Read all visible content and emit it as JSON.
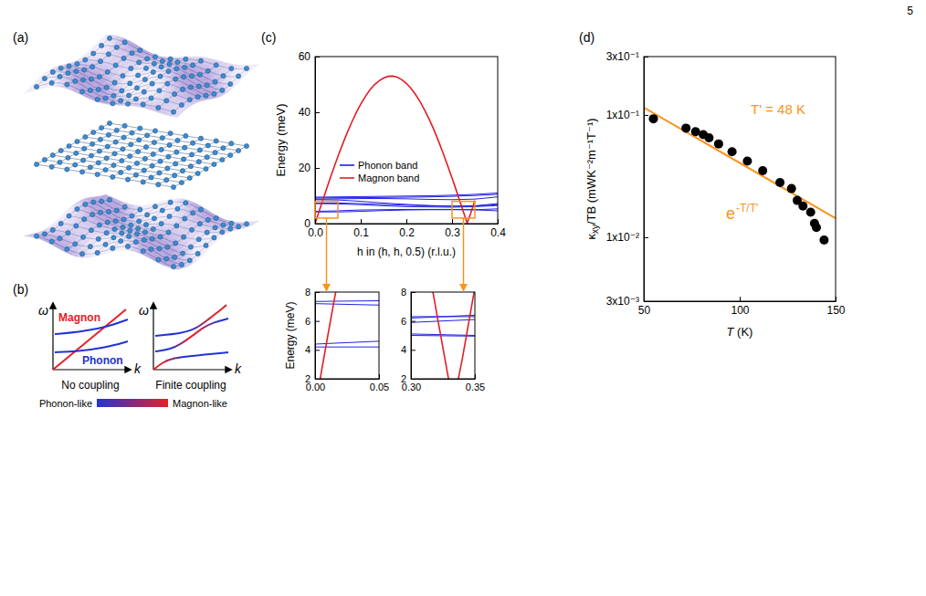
{
  "page_number": "5",
  "chart_data": [
    {
      "type": "diagram",
      "panel": "(a)"
    },
    {
      "type": "schematic",
      "panel": "(b)",
      "panels": [
        {
          "title": "No coupling",
          "x_label": "k",
          "y_label": "ω",
          "series": [
            {
              "name": "Magnon",
              "color": "#e3202a"
            },
            {
              "name": "Phonon",
              "color": "#2233d4"
            }
          ]
        },
        {
          "title": "Finite coupling",
          "x_label": "k",
          "y_label": "ω"
        }
      ],
      "colorbar": {
        "labels": [
          "Phonon-like",
          "Magnon-like"
        ],
        "colors": [
          "#2233d4",
          "#e3202a"
        ]
      }
    },
    {
      "type": "line",
      "panel": "(c)",
      "x_label": "h in (h, h, 0.5) (r.l.u.)",
      "y_label": "Energy (meV)",
      "xlim": [
        0,
        0.4
      ],
      "xticks": [
        {
          "value": 0,
          "label": "0.0"
        },
        0.1,
        0.2,
        0.3,
        0.4
      ],
      "ylim": [
        0,
        60
      ],
      "yticks": [
        0,
        20,
        40,
        60
      ],
      "legend": "center",
      "series": [
        {
          "name": "Phonon band",
          "color": "#2020e6",
          "x": [
            0,
            0.05,
            0.1,
            0.15,
            0.2,
            0.25,
            0.3,
            0.35,
            0.4
          ],
          "values": [
            [
              4.2,
              4.2,
              4.4,
              4.7,
              4.9,
              5.0,
              5.0,
              4.95,
              4.6
            ],
            [
              4.4,
              4.6,
              4.9,
              5.0,
              5.1,
              5.1,
              5.1,
              5.0,
              5.3
            ],
            [
              7.2,
              7.1,
              6.8,
              6.4,
              6.1,
              6.0,
              5.9,
              6.1,
              6.5
            ],
            [
              7.35,
              7.4,
              7.2,
              6.9,
              6.6,
              6.4,
              6.2,
              6.4,
              7.2
            ],
            [
              8.6,
              8.5,
              8.0,
              7.4,
              6.9,
              6.5,
              6.3,
              6.3,
              6.8
            ],
            [
              8.8,
              8.9,
              9.0,
              9.0,
              8.9,
              8.7,
              8.6,
              8.8,
              9.6
            ],
            [
              9.2,
              9.3,
              9.3,
              9.4,
              9.5,
              9.6,
              9.8,
              10.1,
              10.5
            ],
            [
              9.5,
              9.6,
              9.7,
              9.8,
              9.9,
              10.0,
              10.2,
              10.5,
              11.0
            ]
          ]
        },
        {
          "name": "Magnon band",
          "color": "#e41e26",
          "x": [
            0,
            0.01,
            0.02,
            0.03,
            0.04,
            0.05,
            0.06,
            0.07,
            0.08,
            0.09,
            0.1,
            0.11,
            0.12,
            0.13,
            0.14,
            0.15,
            0.16,
            0.17,
            0.18,
            0.19,
            0.2,
            0.21,
            0.22,
            0.23,
            0.24,
            0.25,
            0.26,
            0.27,
            0.28,
            0.29,
            0.3,
            0.31,
            0.32,
            0.33,
            0.333,
            0.34,
            0.35
          ],
          "values": [
            0,
            5.0,
            9.9,
            14.8,
            19.5,
            24.1,
            28.4,
            32.5,
            36.3,
            39.8,
            42.9,
            45.6,
            48.0,
            49.9,
            51.3,
            52.3,
            52.9,
            53.0,
            52.6,
            51.7,
            50.4,
            48.6,
            46.4,
            43.8,
            40.8,
            37.5,
            33.8,
            29.8,
            25.5,
            21.0,
            16.4,
            11.6,
            6.6,
            1.7,
            0.2,
            3.3,
            8.3
          ]
        }
      ],
      "insets": [
        {
          "y_label": "Energy (meV)",
          "xlim": [
            0,
            0.05
          ],
          "xticks": [
            {
              "value": 0,
              "label": "0.00"
            },
            0.05
          ],
          "ylim": [
            2,
            8
          ],
          "yticks": [
            2,
            4,
            6,
            8
          ]
        },
        {
          "xlim": [
            0.3,
            0.35
          ],
          "xticks": [
            {
              "value": 0.3,
              "label": "0.30"
            },
            0.35
          ],
          "ylim": [
            2,
            8
          ],
          "yticks": [
            2,
            4,
            6,
            8
          ]
        }
      ]
    },
    {
      "type": "scatter",
      "panel": "(d)",
      "x_label": "T (K)",
      "y_label": "κxy/TB (mWK⁻²m⁻¹T⁻¹)",
      "xlim": [
        50,
        150
      ],
      "xticks": [
        50,
        100,
        150
      ],
      "ylim": [
        0.003,
        0.3
      ],
      "yticks": [
        {
          "value": 0.003,
          "label": "3x10⁻³"
        },
        {
          "value": 0.01,
          "label": "1x10⁻²"
        },
        {
          "value": 0.1,
          "label": "1x10⁻¹"
        },
        {
          "value": 0.3,
          "label": "3x10⁻¹"
        }
      ],
      "log": "y",
      "series": [
        {
          "type": "scatter",
          "marker": "circle",
          "color": "#000000",
          "x": [
            55,
            72,
            77,
            81,
            84,
            89,
            96,
            104,
            112,
            121,
            127,
            130,
            133,
            137,
            139,
            140,
            144
          ],
          "values": [
            0.093,
            0.078,
            0.073,
            0.069,
            0.065,
            0.058,
            0.05,
            0.042,
            0.035,
            0.028,
            0.025,
            0.02,
            0.018,
            0.016,
            0.013,
            0.012,
            0.0095
          ]
        },
        {
          "type": "line",
          "color": "#f7941d",
          "x": [
            50,
            150
          ],
          "values": [
            0.115,
            0.0143
          ]
        }
      ],
      "annotations": [
        {
          "text": "T' = 48 K",
          "color": "#f7941d"
        },
        {
          "text": "e",
          "superscript": "-T/T'",
          "color": "#f7941d"
        }
      ]
    }
  ]
}
